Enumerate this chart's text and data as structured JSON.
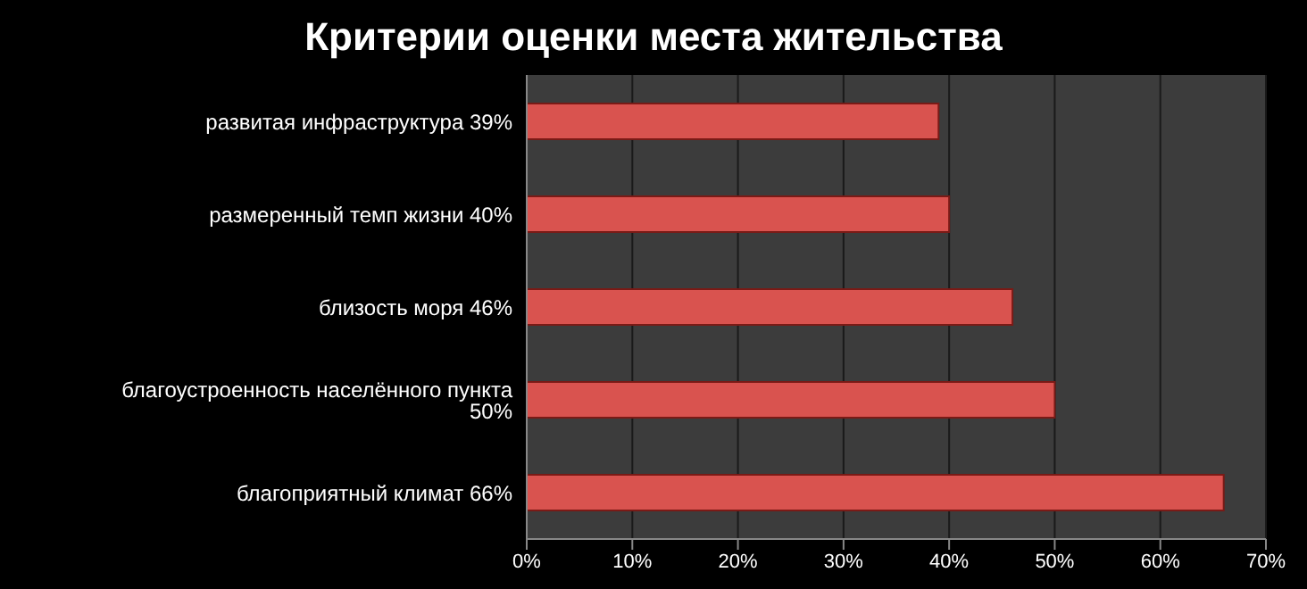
{
  "chart_data": {
    "type": "bar",
    "orientation": "horizontal",
    "title": "Критерии оценки места жительства",
    "categories": [
      "развитая инфраструктура 39%",
      "размеренный темп жизни 40%",
      "близость моря 46%",
      "благоустроенность населённого пункта 50%",
      "благоприятный климат 66%"
    ],
    "values": [
      39,
      40,
      46,
      50,
      66
    ],
    "color": "#d9534f",
    "xlim": [
      0,
      70
    ],
    "xticks": [
      {
        "value": 0,
        "label": "0%"
      },
      {
        "value": 10,
        "label": "10%"
      },
      {
        "value": 20,
        "label": "20%"
      },
      {
        "value": 30,
        "label": "30%"
      },
      {
        "value": 40,
        "label": "40%"
      },
      {
        "value": 50,
        "label": "50%"
      },
      {
        "value": 60,
        "label": "60%"
      },
      {
        "value": 70,
        "label": "70%"
      }
    ],
    "grid": "x",
    "legend": false
  }
}
